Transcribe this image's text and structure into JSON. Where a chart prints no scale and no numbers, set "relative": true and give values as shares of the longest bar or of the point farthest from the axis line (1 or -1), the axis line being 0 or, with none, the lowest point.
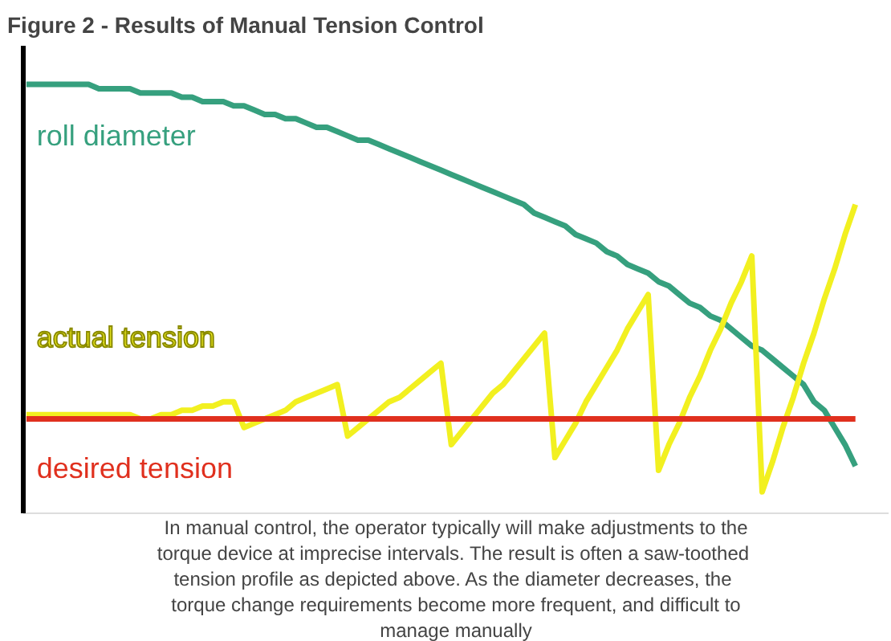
{
  "chart_data": {
    "type": "line",
    "title": "Figure 2 -              Results of Manual Tension Control",
    "relative": true,
    "categories": [
      null,
      null,
      null,
      null,
      null,
      null,
      null,
      null,
      null,
      null,
      null,
      null,
      null,
      null,
      null,
      null,
      null,
      null,
      null,
      null,
      null,
      null,
      null,
      null,
      null,
      null,
      null,
      null,
      null,
      null,
      null,
      null,
      null,
      null,
      null,
      null,
      null,
      null,
      null,
      null,
      null,
      null,
      null,
      null,
      null,
      null,
      null,
      null,
      null,
      null,
      null,
      null,
      null,
      null,
      null,
      null,
      null,
      null,
      null,
      null,
      null,
      null,
      null,
      null,
      null,
      null,
      null,
      null,
      null,
      null,
      null,
      null,
      null,
      null,
      null,
      null,
      null,
      null,
      null,
      null,
      null
    ],
    "series": [
      {
        "name": "roll diameter",
        "color": "#36a07e",
        "values": [
          1.0,
          1.0,
          1.0,
          1.0,
          1.0,
          1.0,
          1.0,
          0.99,
          0.99,
          0.99,
          0.99,
          0.98,
          0.98,
          0.98,
          0.98,
          0.97,
          0.97,
          0.96,
          0.96,
          0.96,
          0.95,
          0.95,
          0.94,
          0.93,
          0.93,
          0.92,
          0.92,
          0.91,
          0.9,
          0.9,
          0.89,
          0.88,
          0.87,
          0.87,
          0.86,
          0.85,
          0.84,
          0.83,
          0.82,
          0.81,
          0.8,
          0.79,
          0.78,
          0.77,
          0.76,
          0.75,
          0.74,
          0.73,
          0.72,
          0.7,
          0.69,
          0.68,
          0.67,
          0.65,
          0.64,
          0.63,
          0.61,
          0.6,
          0.58,
          0.57,
          0.56,
          0.54,
          0.53,
          0.51,
          0.49,
          0.48,
          0.46,
          0.45,
          0.43,
          0.41,
          0.39,
          0.38,
          0.36,
          0.34,
          0.32,
          0.3,
          0.26,
          0.24,
          0.2,
          0.16,
          0.11
        ]
      },
      {
        "name": "actual tension",
        "color": "#f2f020",
        "values": [
          0.23,
          0.23,
          0.23,
          0.23,
          0.23,
          0.23,
          0.23,
          0.23,
          0.23,
          0.23,
          0.23,
          0.22,
          0.22,
          0.23,
          0.23,
          0.24,
          0.24,
          0.25,
          0.25,
          0.26,
          0.26,
          0.2,
          0.21,
          0.22,
          0.23,
          0.24,
          0.26,
          0.27,
          0.28,
          0.29,
          0.3,
          0.18,
          0.2,
          0.22,
          0.24,
          0.26,
          0.27,
          0.29,
          0.31,
          0.33,
          0.35,
          0.16,
          0.19,
          0.22,
          0.25,
          0.28,
          0.3,
          0.33,
          0.36,
          0.39,
          0.42,
          0.13,
          0.17,
          0.21,
          0.26,
          0.3,
          0.34,
          0.38,
          0.43,
          0.47,
          0.51,
          0.1,
          0.16,
          0.21,
          0.27,
          0.32,
          0.38,
          0.43,
          0.49,
          0.54,
          0.6,
          0.05,
          0.12,
          0.2,
          0.27,
          0.35,
          0.42,
          0.5,
          0.57,
          0.65,
          0.72
        ]
      },
      {
        "name": "desired tension",
        "color": "#e0301e",
        "values": [
          0.22,
          0.22,
          0.22,
          0.22,
          0.22,
          0.22,
          0.22,
          0.22,
          0.22,
          0.22,
          0.22,
          0.22,
          0.22,
          0.22,
          0.22,
          0.22,
          0.22,
          0.22,
          0.22,
          0.22,
          0.22,
          0.22,
          0.22,
          0.22,
          0.22,
          0.22,
          0.22,
          0.22,
          0.22,
          0.22,
          0.22,
          0.22,
          0.22,
          0.22,
          0.22,
          0.22,
          0.22,
          0.22,
          0.22,
          0.22,
          0.22,
          0.22,
          0.22,
          0.22,
          0.22,
          0.22,
          0.22,
          0.22,
          0.22,
          0.22,
          0.22,
          0.22,
          0.22,
          0.22,
          0.22,
          0.22,
          0.22,
          0.22,
          0.22,
          0.22,
          0.22,
          0.22,
          0.22,
          0.22,
          0.22,
          0.22,
          0.22,
          0.22,
          0.22,
          0.22,
          0.22,
          0.22,
          0.22,
          0.22,
          0.22,
          0.22,
          0.22,
          0.22,
          0.22,
          0.22,
          0.22
        ]
      }
    ],
    "annotations": [
      "In manual control, the operator typically will make adjustments to the\ntorque device at imprecise intervals.  The result is often a saw-toothed\ntension profile as depicted above.  As the diameter decreases, the\ntorque change requirements become more frequent, and difficult to\nmanage manually"
    ]
  }
}
